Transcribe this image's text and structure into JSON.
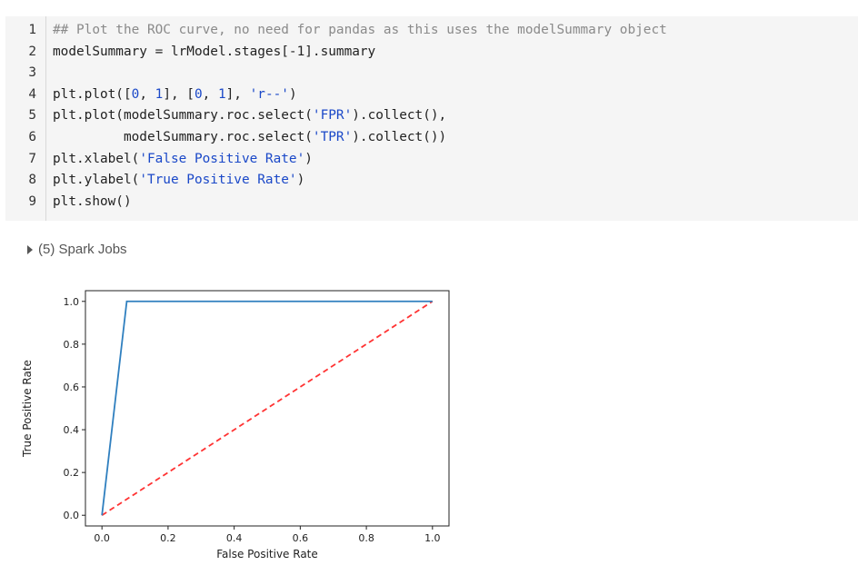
{
  "code": {
    "lines": [
      {
        "n": "1",
        "tokens": [
          {
            "t": "## Plot the ROC curve, no need for pandas as this uses the modelSummary object",
            "k": "cmt"
          }
        ]
      },
      {
        "n": "2",
        "tokens": [
          {
            "t": "modelSummary = lrModel.stages[-1].summary",
            "k": "plain"
          }
        ]
      },
      {
        "n": "3",
        "tokens": []
      },
      {
        "n": "4",
        "tokens": [
          {
            "t": "plt.plot([",
            "k": "plain"
          },
          {
            "t": "0",
            "k": "num"
          },
          {
            "t": ", ",
            "k": "plain"
          },
          {
            "t": "1",
            "k": "num"
          },
          {
            "t": "], [",
            "k": "plain"
          },
          {
            "t": "0",
            "k": "num"
          },
          {
            "t": ", ",
            "k": "plain"
          },
          {
            "t": "1",
            "k": "num"
          },
          {
            "t": "], ",
            "k": "plain"
          },
          {
            "t": "'r--'",
            "k": "str"
          },
          {
            "t": ")",
            "k": "plain"
          }
        ]
      },
      {
        "n": "5",
        "tokens": [
          {
            "t": "plt.plot(modelSummary.roc.select(",
            "k": "plain"
          },
          {
            "t": "'FPR'",
            "k": "str"
          },
          {
            "t": ").collect(),",
            "k": "plain"
          }
        ]
      },
      {
        "n": "6",
        "tokens": [
          {
            "t": "         modelSummary.roc.select(",
            "k": "plain"
          },
          {
            "t": "'TPR'",
            "k": "str"
          },
          {
            "t": ").collect())",
            "k": "plain"
          }
        ]
      },
      {
        "n": "7",
        "tokens": [
          {
            "t": "plt.xlabel(",
            "k": "plain"
          },
          {
            "t": "'False Positive Rate'",
            "k": "str"
          },
          {
            "t": ")",
            "k": "plain"
          }
        ]
      },
      {
        "n": "8",
        "tokens": [
          {
            "t": "plt.ylabel(",
            "k": "plain"
          },
          {
            "t": "'True Positive Rate'",
            "k": "str"
          },
          {
            "t": ")",
            "k": "plain"
          }
        ]
      },
      {
        "n": "9",
        "tokens": [
          {
            "t": "plt.show()",
            "k": "plain"
          }
        ]
      }
    ]
  },
  "spark_jobs": {
    "label": "(5) Spark Jobs"
  },
  "chart_data": {
    "type": "line",
    "xlabel": "False Positive Rate",
    "ylabel": "True Positive Rate",
    "xlim": [
      0.0,
      1.0
    ],
    "ylim": [
      0.0,
      1.0
    ],
    "xticks": [
      "0.0",
      "0.2",
      "0.4",
      "0.6",
      "0.8",
      "1.0"
    ],
    "yticks": [
      "0.0",
      "0.2",
      "0.4",
      "0.6",
      "0.8",
      "1.0"
    ],
    "grid": false,
    "series": [
      {
        "style": "dashed",
        "color": "#ff3333",
        "x": [
          0,
          1
        ],
        "y": [
          0,
          1
        ]
      },
      {
        "style": "solid",
        "color": "#2f7fbf",
        "x": [
          0.0,
          0.075,
          1.0
        ],
        "y": [
          0.0,
          1.0,
          1.0
        ]
      }
    ]
  }
}
